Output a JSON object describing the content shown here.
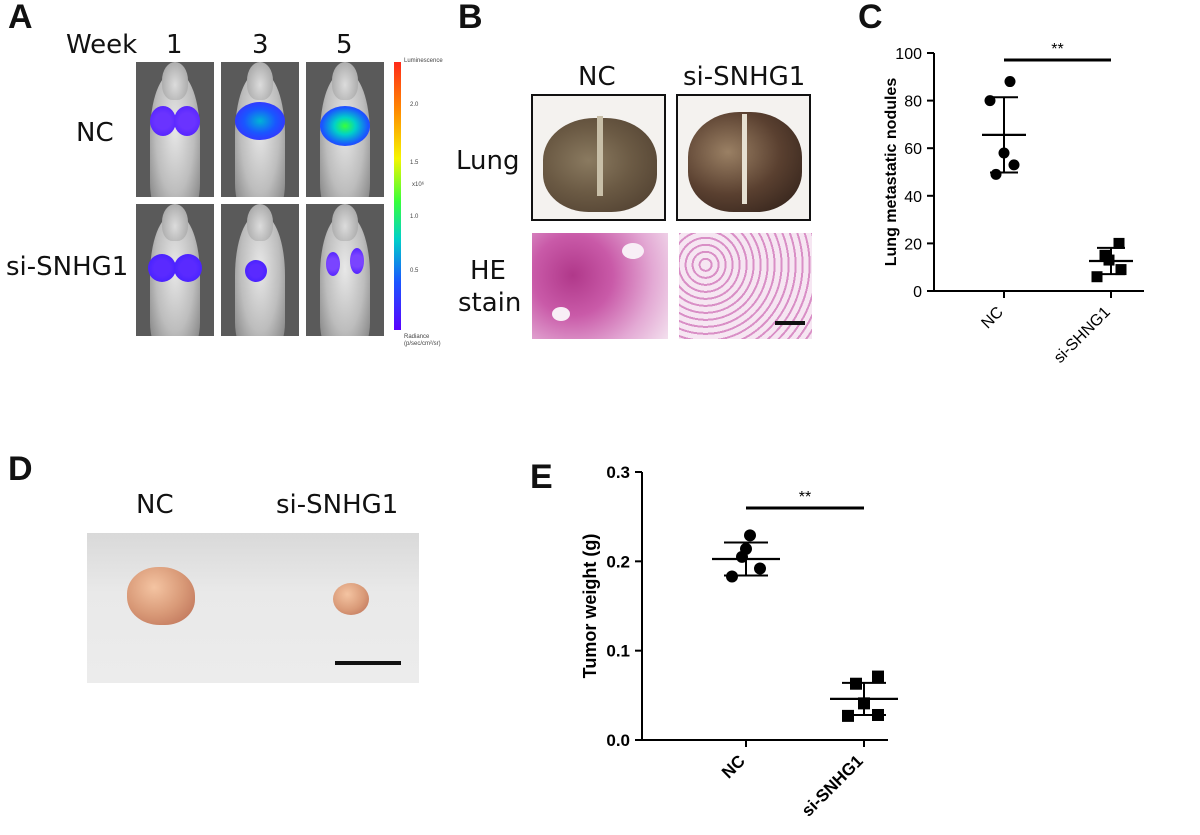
{
  "panels": {
    "A": {
      "letter": "A",
      "week_label": "Week",
      "weeks": [
        "1",
        "3",
        "5"
      ],
      "rows": [
        "NC",
        "si-SNHG1"
      ],
      "scale_top": "Luminescence",
      "scale_unit": "x10⁶",
      "scale_ticks": [
        "2.0",
        "1.5",
        "1.0",
        "0.5"
      ],
      "scale_bottom": "Radiance (p/sec/cm²/sr)"
    },
    "B": {
      "letter": "B",
      "cols": [
        "NC",
        "si-SNHG1"
      ],
      "row_lung": "Lung",
      "row_he_1": "HE",
      "row_he_2": "stain"
    },
    "C": {
      "letter": "C"
    },
    "D": {
      "letter": "D",
      "cols": [
        "NC",
        "si-SNHG1"
      ]
    },
    "E": {
      "letter": "E"
    }
  },
  "colors": {
    "black": "#000000",
    "bioluminescence": [
      "#3b1bff",
      "#1a56ff",
      "#00d1c8",
      "#38ff3a"
    ],
    "he_stain": "#d98fc6"
  },
  "chart_data": [
    {
      "id": "C",
      "type": "scatter",
      "title": "",
      "xlabel": "",
      "ylabel": "Lung metastatic nodules",
      "categories": [
        "NC",
        "si-SHNG1"
      ],
      "ylim": [
        0,
        100
      ],
      "yticks": [
        0,
        20,
        40,
        60,
        80,
        100
      ],
      "series": [
        {
          "name": "NC",
          "marker": "circle",
          "values": [
            49,
            53,
            58,
            80,
            88
          ],
          "mean": 65.6,
          "sd": 15.8
        },
        {
          "name": "si-SHNG1",
          "marker": "square",
          "values": [
            6,
            9,
            13,
            15,
            20
          ],
          "mean": 12.6,
          "sd": 5.5
        }
      ],
      "significance": "**",
      "grid": false
    },
    {
      "id": "E",
      "type": "scatter",
      "title": "",
      "xlabel": "",
      "ylabel": "Tumor weight (g)",
      "categories": [
        "NC",
        "si-SNHG1"
      ],
      "ylim": [
        0,
        0.3
      ],
      "yticks": [
        "0.0",
        "0.1",
        "0.2",
        "0.3"
      ],
      "series": [
        {
          "name": "NC",
          "marker": "circle",
          "values": [
            0.183,
            0.192,
            0.205,
            0.214,
            0.229
          ],
          "mean": 0.2026,
          "sd": 0.0185
        },
        {
          "name": "si-SNHG1",
          "marker": "square",
          "values": [
            0.027,
            0.028,
            0.041,
            0.063,
            0.071
          ],
          "mean": 0.046,
          "sd": 0.018
        },
        {
          "name": "",
          "marker": "none",
          "values": []
        }
      ],
      "significance": "**",
      "grid": false
    }
  ]
}
